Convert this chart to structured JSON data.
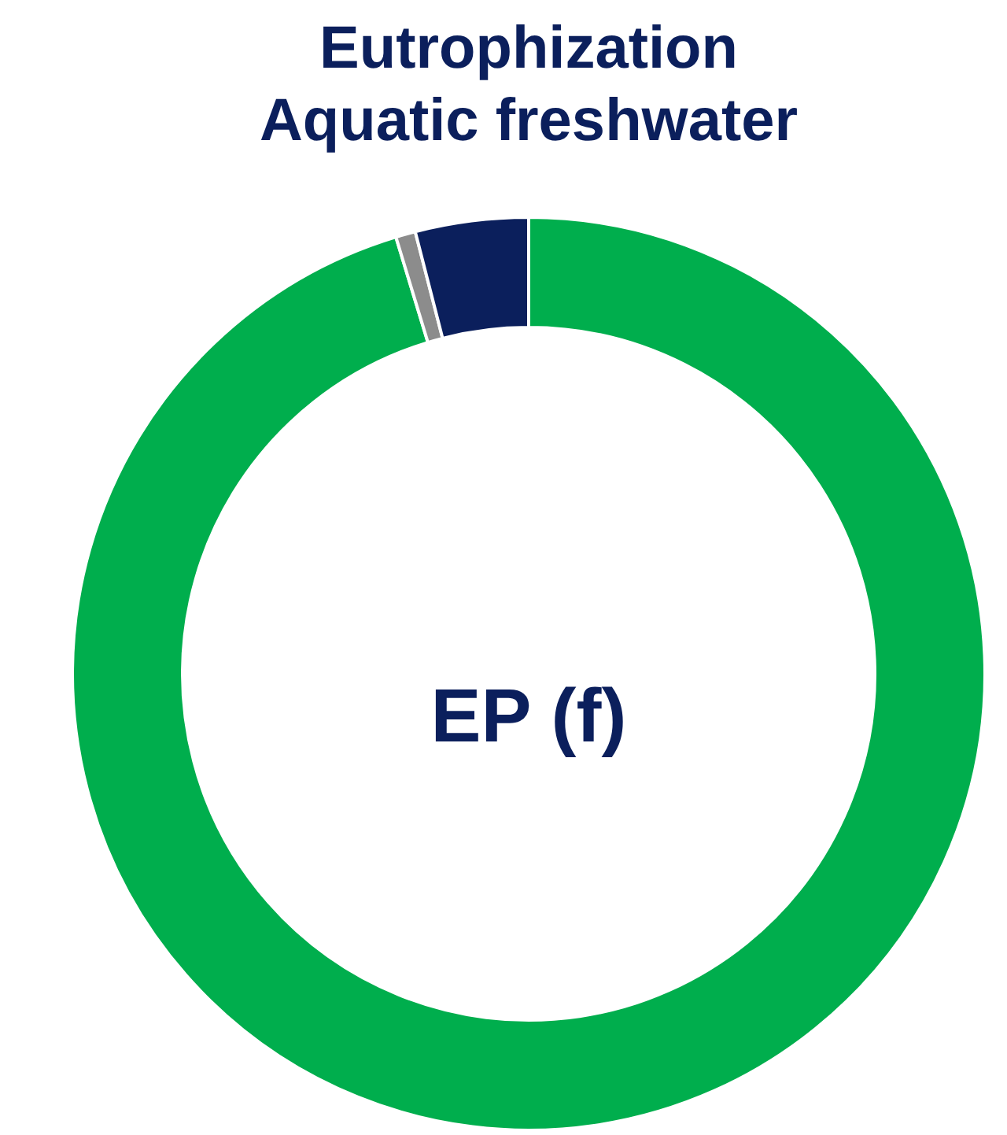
{
  "chart_data": {
    "type": "donut",
    "title": "Eutrophization\nAquatic freshwater",
    "annotations": [
      "EP (f)"
    ],
    "categories": [
      null,
      null,
      null
    ],
    "values": [
      95.3,
      0.7,
      4.0
    ],
    "colors": [
      "#00ae4d",
      "#8c8c8c",
      "#0b1f5c"
    ]
  }
}
